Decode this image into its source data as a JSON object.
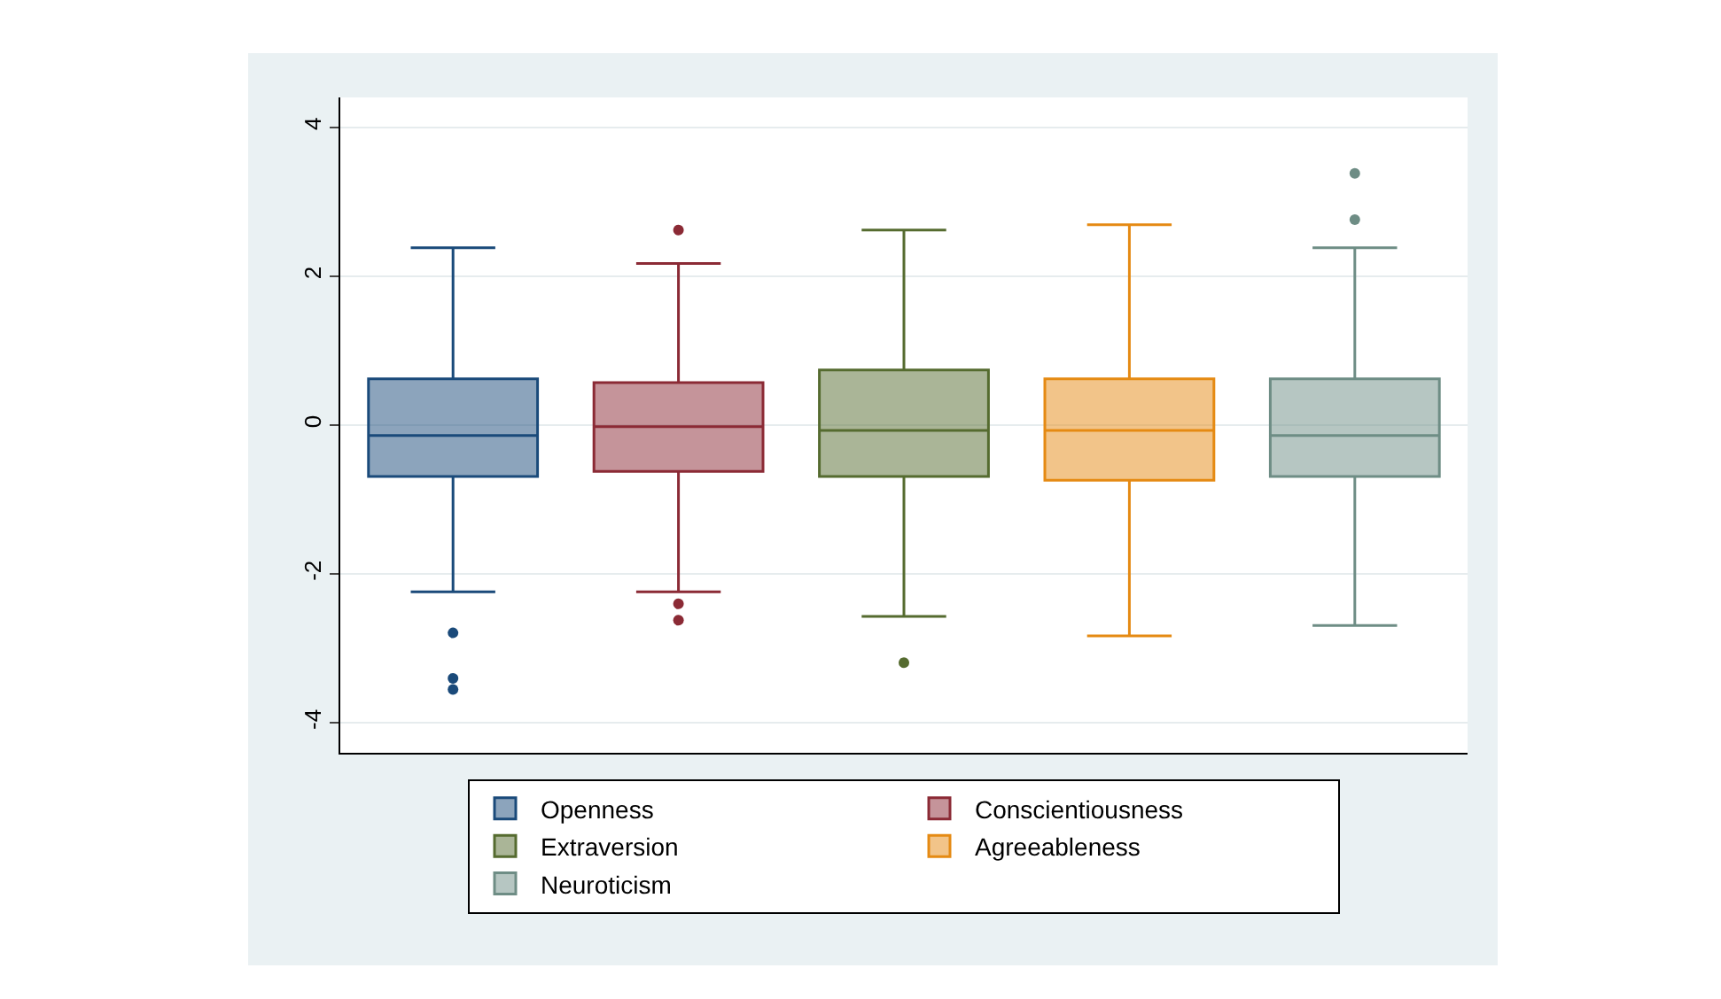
{
  "chart_data": {
    "type": "box",
    "categories": [
      null,
      null,
      null,
      null,
      null
    ],
    "ylim": [
      -4.4,
      4.4
    ],
    "yticks": [
      -4,
      -2,
      0,
      2,
      4
    ],
    "grid": "y",
    "legend": "bottom",
    "tick_labels": "y",
    "marker": "circle",
    "series": [
      {
        "name": "Openness",
        "color": "#1a4a7a",
        "boxes": [
          {
            "low": -2.24,
            "q1": -0.69,
            "median": -0.14,
            "q3": 0.62,
            "high": 2.38,
            "outliers": [
              -2.79,
              -3.4,
              -3.55
            ]
          },
          null,
          null,
          null,
          null
        ]
      },
      {
        "name": "Conscientiousness",
        "color": "#8b2a35",
        "boxes": [
          null,
          {
            "low": -2.24,
            "q1": -0.62,
            "median": -0.02,
            "q3": 0.57,
            "high": 2.17,
            "outliers": [
              2.62,
              -2.4,
              -2.62
            ]
          },
          null,
          null,
          null
        ]
      },
      {
        "name": "Extraversion",
        "color": "#556b2f",
        "boxes": [
          null,
          null,
          {
            "low": -2.57,
            "q1": -0.69,
            "median": -0.07,
            "q3": 0.74,
            "high": 2.62,
            "outliers": [
              -3.19
            ]
          },
          null,
          null
        ]
      },
      {
        "name": "Agreeableness",
        "color": "#e58a13",
        "boxes": [
          null,
          null,
          null,
          {
            "low": -2.83,
            "q1": -0.74,
            "median": -0.07,
            "q3": 0.62,
            "high": 2.69
          },
          null
        ]
      },
      {
        "name": "Neuroticism",
        "color": "#6e8d85",
        "boxes": [
          null,
          null,
          null,
          null,
          {
            "low": -2.69,
            "q1": -0.69,
            "median": -0.14,
            "q3": 0.62,
            "high": 2.38,
            "outliers": [
              3.38,
              2.76
            ]
          }
        ]
      }
    ]
  }
}
